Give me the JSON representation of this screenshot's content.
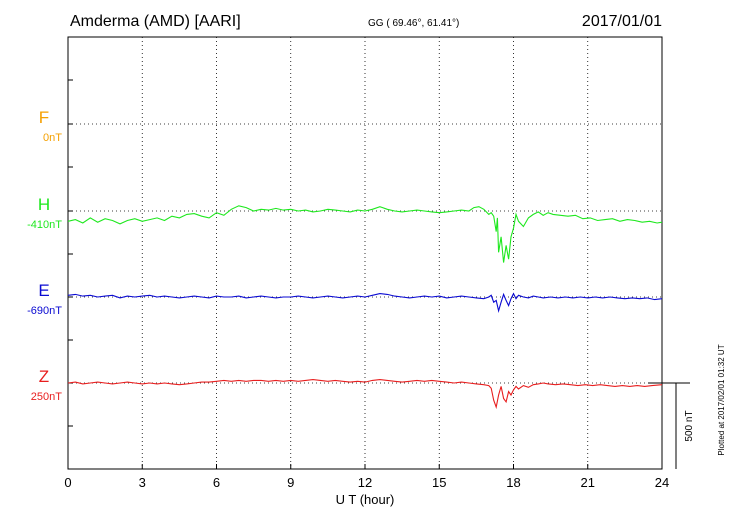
{
  "header": {
    "station": "Amderma (AMD)  [AARI]",
    "coords": "GG ( 69.46°,  61.41°)",
    "date": "2017/01/01"
  },
  "footer": {
    "plotted_note": "Plotted at 2017/02/01 01:32 UT"
  },
  "scale_bar": {
    "label": "500 nT",
    "value_nT": 500
  },
  "colors": {
    "F": "#f5a000",
    "H": "#1ee81e",
    "E": "#0a0ad2",
    "Z": "#e81e1e",
    "frame": "#000000"
  },
  "chart_data": {
    "type": "line",
    "xlabel": "U T (hour)",
    "xlim": [
      0,
      24
    ],
    "x_ticks": [
      "0",
      "3",
      "6",
      "9",
      "12",
      "15",
      "18",
      "21",
      "24"
    ],
    "grid": true,
    "series": [
      {
        "name": "F",
        "baseline": "0nT",
        "points": []
      },
      {
        "name": "H",
        "baseline": "-410nT",
        "points": [
          [
            0,
            -60
          ],
          [
            0.3,
            -50
          ],
          [
            0.6,
            -70
          ],
          [
            0.9,
            -40
          ],
          [
            1.2,
            -65
          ],
          [
            1.5,
            -45
          ],
          [
            1.8,
            -55
          ],
          [
            2.1,
            -75
          ],
          [
            2.4,
            -55
          ],
          [
            2.7,
            -45
          ],
          [
            3.0,
            -60
          ],
          [
            3.3,
            -50
          ],
          [
            3.6,
            -40
          ],
          [
            3.9,
            -55
          ],
          [
            4.2,
            -30
          ],
          [
            4.5,
            -40
          ],
          [
            4.8,
            -20
          ],
          [
            5.1,
            -15
          ],
          [
            5.4,
            -30
          ],
          [
            5.7,
            -40
          ],
          [
            6.0,
            -10
          ],
          [
            6.3,
            -25
          ],
          [
            6.6,
            10
          ],
          [
            6.9,
            30
          ],
          [
            7.2,
            20
          ],
          [
            7.5,
            0
          ],
          [
            7.8,
            10
          ],
          [
            8.1,
            5
          ],
          [
            8.4,
            15
          ],
          [
            8.7,
            5
          ],
          [
            9.0,
            10
          ],
          [
            9.3,
            0
          ],
          [
            9.6,
            5
          ],
          [
            9.9,
            -5
          ],
          [
            10.2,
            0
          ],
          [
            10.5,
            10
          ],
          [
            10.8,
            5
          ],
          [
            11.1,
            0
          ],
          [
            11.4,
            -5
          ],
          [
            11.7,
            5
          ],
          [
            12.0,
            0
          ],
          [
            12.3,
            10
          ],
          [
            12.6,
            25
          ],
          [
            12.9,
            10
          ],
          [
            13.2,
            0
          ],
          [
            13.5,
            -5
          ],
          [
            13.8,
            0
          ],
          [
            14.1,
            5
          ],
          [
            14.4,
            0
          ],
          [
            14.7,
            -5
          ],
          [
            15.0,
            -10
          ],
          [
            15.3,
            -5
          ],
          [
            15.6,
            0
          ],
          [
            15.9,
            5
          ],
          [
            16.2,
            0
          ],
          [
            16.4,
            20
          ],
          [
            16.6,
            25
          ],
          [
            16.8,
            10
          ],
          [
            17.0,
            -20
          ],
          [
            17.1,
            -10
          ],
          [
            17.2,
            -30
          ],
          [
            17.3,
            -120
          ],
          [
            17.35,
            -40
          ],
          [
            17.4,
            -240
          ],
          [
            17.5,
            -150
          ],
          [
            17.6,
            -300
          ],
          [
            17.7,
            -200
          ],
          [
            17.8,
            -280
          ],
          [
            17.9,
            -150
          ],
          [
            18.0,
            -100
          ],
          [
            18.1,
            -20
          ],
          [
            18.2,
            -60
          ],
          [
            18.4,
            -90
          ],
          [
            18.6,
            -40
          ],
          [
            18.8,
            -20
          ],
          [
            19.0,
            -5
          ],
          [
            19.2,
            -25
          ],
          [
            19.4,
            -10
          ],
          [
            19.6,
            -20
          ],
          [
            19.9,
            -25
          ],
          [
            20.2,
            -30
          ],
          [
            20.5,
            -25
          ],
          [
            20.8,
            -45
          ],
          [
            21.1,
            -40
          ],
          [
            21.4,
            -55
          ],
          [
            21.7,
            -50
          ],
          [
            22.0,
            -45
          ],
          [
            22.3,
            -60
          ],
          [
            22.6,
            -50
          ],
          [
            22.9,
            -55
          ],
          [
            23.2,
            -65
          ],
          [
            23.5,
            -60
          ],
          [
            23.8,
            -70
          ],
          [
            24.0,
            -65
          ]
        ]
      },
      {
        "name": "E",
        "baseline": "-690nT",
        "points": [
          [
            0,
            10
          ],
          [
            0.3,
            15
          ],
          [
            0.6,
            5
          ],
          [
            0.9,
            10
          ],
          [
            1.2,
            0
          ],
          [
            1.5,
            5
          ],
          [
            1.8,
            10
          ],
          [
            2.1,
            -5
          ],
          [
            2.4,
            5
          ],
          [
            2.7,
            0
          ],
          [
            3.0,
            5
          ],
          [
            3.3,
            10
          ],
          [
            3.6,
            0
          ],
          [
            3.9,
            5
          ],
          [
            4.2,
            0
          ],
          [
            4.5,
            -5
          ],
          [
            4.8,
            0
          ],
          [
            5.1,
            5
          ],
          [
            5.4,
            0
          ],
          [
            5.7,
            -5
          ],
          [
            6.0,
            5
          ],
          [
            6.3,
            0
          ],
          [
            6.6,
            0
          ],
          [
            6.9,
            5
          ],
          [
            7.2,
            -5
          ],
          [
            7.5,
            0
          ],
          [
            7.8,
            5
          ],
          [
            8.1,
            0
          ],
          [
            8.4,
            -5
          ],
          [
            8.7,
            0
          ],
          [
            9.0,
            0
          ],
          [
            9.3,
            5
          ],
          [
            9.6,
            0
          ],
          [
            9.9,
            -5
          ],
          [
            10.2,
            0
          ],
          [
            10.5,
            5
          ],
          [
            10.8,
            0
          ],
          [
            11.1,
            -5
          ],
          [
            11.4,
            0
          ],
          [
            11.7,
            5
          ],
          [
            12.0,
            0
          ],
          [
            12.3,
            10
          ],
          [
            12.6,
            20
          ],
          [
            12.9,
            15
          ],
          [
            13.2,
            5
          ],
          [
            13.5,
            0
          ],
          [
            13.8,
            -5
          ],
          [
            14.1,
            0
          ],
          [
            14.4,
            5
          ],
          [
            14.7,
            0
          ],
          [
            15.0,
            5
          ],
          [
            15.3,
            -5
          ],
          [
            15.6,
            0
          ],
          [
            15.9,
            5
          ],
          [
            16.2,
            0
          ],
          [
            16.5,
            -5
          ],
          [
            16.8,
            -10
          ],
          [
            17.0,
            0
          ],
          [
            17.1,
            10
          ],
          [
            17.2,
            -30
          ],
          [
            17.3,
            -20
          ],
          [
            17.4,
            -80
          ],
          [
            17.5,
            -30
          ],
          [
            17.6,
            15
          ],
          [
            17.7,
            -20
          ],
          [
            17.8,
            -50
          ],
          [
            17.9,
            -10
          ],
          [
            18.0,
            20
          ],
          [
            18.1,
            -10
          ],
          [
            18.2,
            10
          ],
          [
            18.4,
            0
          ],
          [
            18.6,
            -5
          ],
          [
            18.8,
            5
          ],
          [
            19.0,
            0
          ],
          [
            19.2,
            -5
          ],
          [
            19.5,
            0
          ],
          [
            19.8,
            -5
          ],
          [
            20.1,
            0
          ],
          [
            20.4,
            -5
          ],
          [
            20.7,
            0
          ],
          [
            21.0,
            -5
          ],
          [
            21.3,
            0
          ],
          [
            21.6,
            -5
          ],
          [
            21.9,
            0
          ],
          [
            22.2,
            -5
          ],
          [
            22.5,
            -10
          ],
          [
            22.8,
            -5
          ],
          [
            23.1,
            -10
          ],
          [
            23.4,
            -5
          ],
          [
            23.7,
            -15
          ],
          [
            24.0,
            -10
          ]
        ]
      },
      {
        "name": "Z",
        "baseline": "250nT",
        "points": [
          [
            0,
            0
          ],
          [
            0.3,
            5
          ],
          [
            0.6,
            -5
          ],
          [
            0.9,
            0
          ],
          [
            1.2,
            5
          ],
          [
            1.5,
            0
          ],
          [
            1.8,
            -5
          ],
          [
            2.1,
            0
          ],
          [
            2.4,
            5
          ],
          [
            2.7,
            0
          ],
          [
            3.0,
            -5
          ],
          [
            3.3,
            0
          ],
          [
            3.6,
            -5
          ],
          [
            3.9,
            0
          ],
          [
            4.2,
            -5
          ],
          [
            4.5,
            -10
          ],
          [
            4.8,
            -5
          ],
          [
            5.1,
            0
          ],
          [
            5.4,
            5
          ],
          [
            5.7,
            5
          ],
          [
            6.0,
            10
          ],
          [
            6.3,
            15
          ],
          [
            6.6,
            10
          ],
          [
            6.9,
            15
          ],
          [
            7.2,
            10
          ],
          [
            7.5,
            15
          ],
          [
            7.8,
            15
          ],
          [
            8.1,
            10
          ],
          [
            8.4,
            15
          ],
          [
            8.7,
            10
          ],
          [
            9.0,
            15
          ],
          [
            9.3,
            10
          ],
          [
            9.6,
            15
          ],
          [
            9.9,
            20
          ],
          [
            10.2,
            15
          ],
          [
            10.5,
            10
          ],
          [
            10.8,
            15
          ],
          [
            11.1,
            10
          ],
          [
            11.4,
            5
          ],
          [
            11.7,
            10
          ],
          [
            12.0,
            5
          ],
          [
            12.3,
            15
          ],
          [
            12.6,
            20
          ],
          [
            12.9,
            15
          ],
          [
            13.2,
            10
          ],
          [
            13.5,
            5
          ],
          [
            13.8,
            10
          ],
          [
            14.1,
            15
          ],
          [
            14.4,
            10
          ],
          [
            14.7,
            15
          ],
          [
            15.0,
            10
          ],
          [
            15.3,
            5
          ],
          [
            15.6,
            0
          ],
          [
            15.9,
            5
          ],
          [
            16.2,
            0
          ],
          [
            16.5,
            -5
          ],
          [
            16.8,
            -10
          ],
          [
            17.0,
            -15
          ],
          [
            17.1,
            -30
          ],
          [
            17.2,
            -100
          ],
          [
            17.3,
            -140
          ],
          [
            17.4,
            -70
          ],
          [
            17.5,
            -20
          ],
          [
            17.6,
            -90
          ],
          [
            17.7,
            -110
          ],
          [
            17.8,
            -50
          ],
          [
            17.9,
            -70
          ],
          [
            18.0,
            -40
          ],
          [
            18.1,
            -20
          ],
          [
            18.2,
            -35
          ],
          [
            18.4,
            -15
          ],
          [
            18.6,
            -25
          ],
          [
            18.8,
            -10
          ],
          [
            19.0,
            -5
          ],
          [
            19.2,
            0
          ],
          [
            19.4,
            -5
          ],
          [
            19.7,
            -10
          ],
          [
            20.0,
            -5
          ],
          [
            20.3,
            -10
          ],
          [
            20.6,
            -15
          ],
          [
            20.9,
            -10
          ],
          [
            21.2,
            -15
          ],
          [
            21.5,
            -10
          ],
          [
            21.8,
            -15
          ],
          [
            22.1,
            -20
          ],
          [
            22.4,
            -15
          ],
          [
            22.7,
            -20
          ],
          [
            23.0,
            -15
          ],
          [
            23.3,
            -20
          ],
          [
            23.6,
            -15
          ],
          [
            24.0,
            -10
          ]
        ]
      }
    ]
  }
}
